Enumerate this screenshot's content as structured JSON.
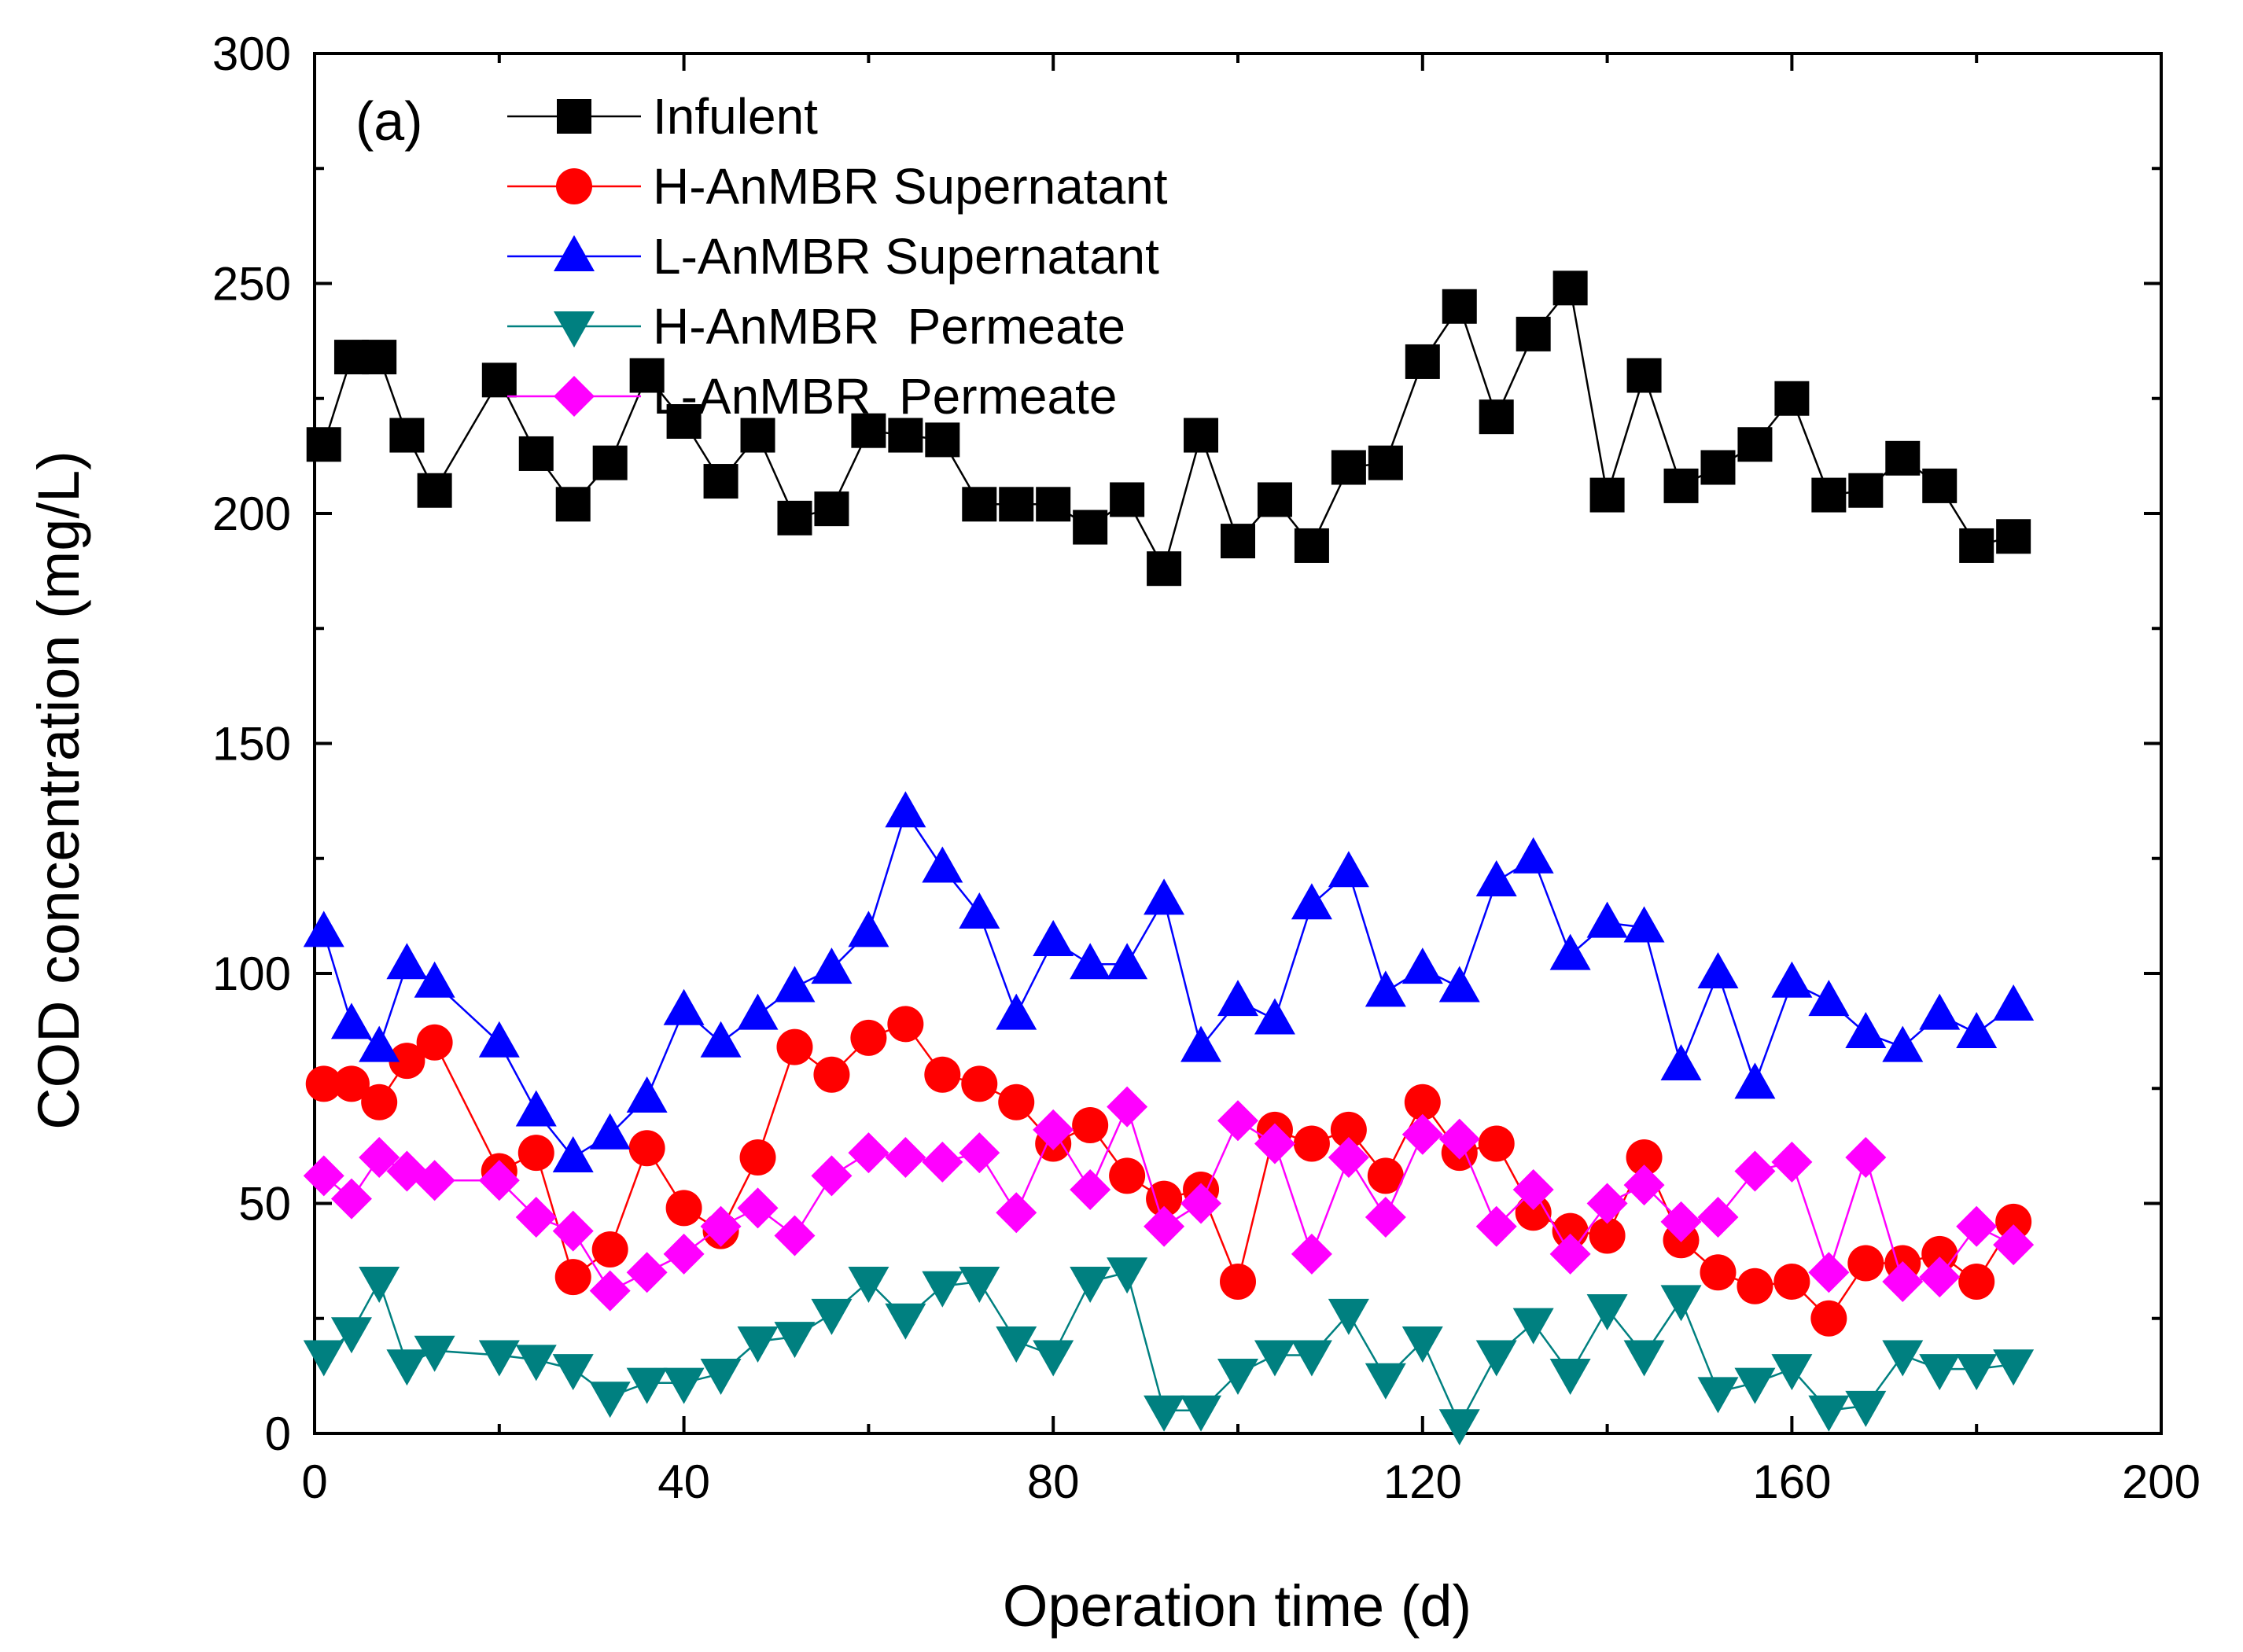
{
  "chart_data": {
    "type": "line",
    "panel_label": "(a)",
    "xlabel": "Operation time (d)",
    "ylabel": "COD concentration (mg/L)",
    "xlim": [
      0,
      200
    ],
    "ylim": [
      0,
      300
    ],
    "x_ticks": [
      0,
      40,
      80,
      120,
      160,
      200
    ],
    "y_ticks": [
      0,
      50,
      100,
      150,
      200,
      250,
      300
    ],
    "legend_position": "top-left",
    "grid": false,
    "series": [
      {
        "name": "Infulent",
        "marker": "square",
        "color": "#000000",
        "x": [
          1,
          4,
          7,
          10,
          13,
          20,
          24,
          28,
          32,
          36,
          40,
          44,
          48,
          52,
          56,
          60,
          64,
          68,
          72,
          76,
          80,
          84,
          88,
          92,
          96,
          100,
          104,
          108,
          112,
          116,
          120,
          124,
          128,
          132,
          136,
          140,
          144,
          148,
          152,
          156,
          160,
          164,
          168,
          172,
          176,
          180,
          184
        ],
        "y": [
          215,
          234,
          234,
          217,
          205,
          229,
          213,
          202,
          211,
          230,
          220,
          207,
          217,
          199,
          201,
          218,
          217,
          216,
          202,
          202,
          202,
          197,
          203,
          188,
          217,
          194,
          203,
          193,
          210,
          211,
          233,
          245,
          221,
          239,
          249,
          204,
          230,
          206,
          210,
          215,
          225,
          204,
          205,
          212,
          206,
          193,
          195
        ]
      },
      {
        "name": "H-AnMBR Supernatant",
        "marker": "circle",
        "color": "#ff0000",
        "x": [
          1,
          4,
          7,
          10,
          13,
          20,
          24,
          28,
          32,
          36,
          40,
          44,
          48,
          52,
          56,
          60,
          64,
          68,
          72,
          76,
          80,
          84,
          88,
          92,
          96,
          100,
          104,
          108,
          112,
          116,
          120,
          124,
          128,
          132,
          136,
          140,
          144,
          148,
          152,
          156,
          160,
          164,
          168,
          172,
          176,
          180,
          184
        ],
        "y": [
          76,
          76,
          72,
          81,
          85,
          57,
          61,
          34,
          40,
          62,
          49,
          44,
          60,
          84,
          78,
          86,
          89,
          78,
          76,
          72,
          63,
          67,
          56,
          51,
          53,
          33,
          66,
          63,
          66,
          56,
          72,
          61,
          63,
          48,
          44,
          43,
          60,
          42,
          35,
          32,
          33,
          25,
          37,
          37,
          39,
          33,
          46
        ]
      },
      {
        "name": "L-AnMBR Supernatant",
        "marker": "triangle-up",
        "color": "#0000ff",
        "x": [
          1,
          4,
          7,
          10,
          13,
          20,
          24,
          28,
          32,
          36,
          40,
          44,
          48,
          52,
          56,
          60,
          64,
          68,
          72,
          76,
          80,
          84,
          88,
          92,
          96,
          100,
          104,
          108,
          112,
          116,
          120,
          124,
          128,
          132,
          136,
          140,
          144,
          148,
          152,
          156,
          160,
          164,
          168,
          172,
          176,
          180,
          184
        ],
        "y": [
          109,
          89,
          84,
          102,
          98,
          85,
          70,
          60,
          65,
          73,
          92,
          85,
          91,
          97,
          101,
          109,
          135,
          123,
          113,
          91,
          107,
          102,
          102,
          116,
          84,
          94,
          90,
          115,
          122,
          96,
          101,
          97,
          120,
          125,
          104,
          111,
          110,
          80,
          100,
          76,
          98,
          94,
          87,
          84,
          91,
          87,
          93
        ]
      },
      {
        "name": "H-AnMBR  Permeate",
        "marker": "triangle-down",
        "color": "#008080",
        "x": [
          1,
          4,
          7,
          10,
          13,
          20,
          24,
          28,
          32,
          36,
          40,
          44,
          48,
          52,
          56,
          60,
          64,
          68,
          72,
          76,
          80,
          84,
          88,
          92,
          96,
          100,
          104,
          108,
          112,
          116,
          120,
          124,
          128,
          132,
          136,
          140,
          144,
          148,
          152,
          156,
          160,
          164,
          168,
          172,
          176,
          180,
          184
        ],
        "y": [
          17,
          22,
          33,
          15,
          18,
          17,
          16,
          14,
          8,
          11,
          11,
          13,
          20,
          21,
          26,
          33,
          25,
          32,
          33,
          20,
          17,
          33,
          35,
          5,
          5,
          13,
          17,
          17,
          26,
          12,
          20,
          2,
          17,
          24,
          13,
          27,
          17,
          29,
          9,
          11,
          14,
          5,
          6,
          17,
          14,
          14,
          15
        ]
      },
      {
        "name": "L-AnMBR  Permeate",
        "marker": "diamond",
        "color": "#ff00ff",
        "x": [
          1,
          4,
          7,
          10,
          13,
          20,
          24,
          28,
          32,
          36,
          40,
          44,
          48,
          52,
          56,
          60,
          64,
          68,
          72,
          76,
          80,
          84,
          88,
          92,
          96,
          100,
          104,
          108,
          112,
          116,
          120,
          124,
          128,
          132,
          136,
          140,
          144,
          148,
          152,
          156,
          160,
          164,
          168,
          172,
          176,
          180,
          184
        ],
        "y": [
          56,
          51,
          60,
          57,
          55,
          55,
          47,
          44,
          31,
          35,
          39,
          45,
          49,
          43,
          56,
          61,
          60,
          59,
          61,
          48,
          66,
          53,
          71,
          45,
          50,
          68,
          63,
          39,
          60,
          47,
          65,
          64,
          45,
          53,
          39,
          50,
          54,
          46,
          47,
          57,
          59,
          35,
          60,
          33,
          34,
          45,
          41
        ]
      }
    ]
  }
}
